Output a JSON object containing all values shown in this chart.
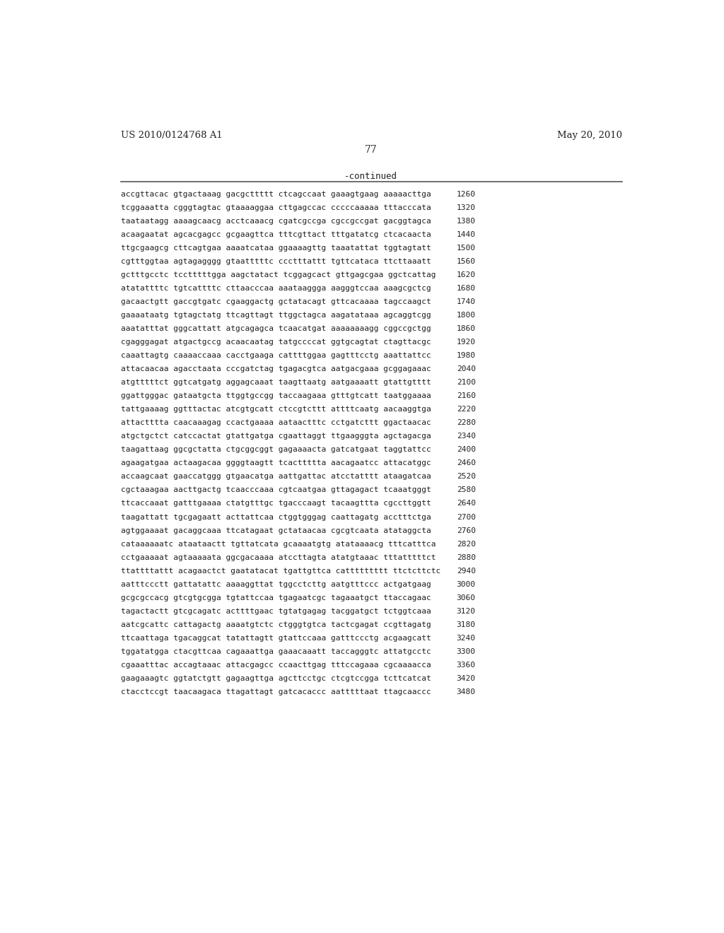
{
  "header_left": "US 2010/0124768 A1",
  "header_right": "May 20, 2010",
  "page_number": "77",
  "continued_text": "-continued",
  "background_color": "#ffffff",
  "text_color": "#231f20",
  "sequence_lines": [
    [
      "accgttacac gtgactaaag gacgcttttt ctcagccaat gaaagtgaag aaaaacttga",
      "1260"
    ],
    [
      "tcggaaatta cgggtagtac gtaaaaggaa cttgagccac cccccaaaaa tttacccata",
      "1320"
    ],
    [
      "taataatagg aaaagcaacg acctcaaacg cgatcgccga cgccgccgat gacggtagca",
      "1380"
    ],
    [
      "acaagaatat agcacgagcc gcgaagttca tttcgttact tttgatatcg ctcacaacta",
      "1440"
    ],
    [
      "ttgcgaagcg cttcagtgaa aaaatcataa ggaaaagttg taaatattat tggtagtatt",
      "1500"
    ],
    [
      "cgtttggtaa agtagagggg gtaatttttc ccctttattt tgttcataca ttcttaaatt",
      "1560"
    ],
    [
      "gctttgcctc tcctttttgga aagctatact tcggagcact gttgagcgaa ggctcattag",
      "1620"
    ],
    [
      "atatattttc tgtcattttc cttaacccaa aaataaggga aagggtccaa aaagcgctcg",
      "1680"
    ],
    [
      "gacaactgtt gaccgtgatc cgaaggactg gctatacagt gttcacaaaa tagccaagct",
      "1740"
    ],
    [
      "gaaaataatg tgtagctatg ttcagttagt ttggctagca aagatataaa agcaggtcgg",
      "1800"
    ],
    [
      "aaatatttat gggcattatt atgcagagca tcaacatgat aaaaaaaagg cggccgctgg",
      "1860"
    ],
    [
      "cgagggagat atgactgccg acaacaatag tatgccccat ggtgcagtat ctagttacgc",
      "1920"
    ],
    [
      "caaattagtg caaaaccaaa cacctgaaga cattttggaa gagtttcctg aaattattcc",
      "1980"
    ],
    [
      "attacaacaa agacctaata cccgatctag tgagacgtca aatgacgaaa gcggagaaac",
      "2040"
    ],
    [
      "atgtttttct ggtcatgatg aggagcaaat taagttaatg aatgaaaatt gtattgtttt",
      "2100"
    ],
    [
      "ggattgggac gataatgcta ttggtgccgg taccaagaaa gtttgtcatt taatggaaaa",
      "2160"
    ],
    [
      "tattgaaaag ggtttactac atcgtgcatt ctccgtcttt attttcaatg aacaaggtga",
      "2220"
    ],
    [
      "attactttta caacaaagag ccactgaaaa aataactttc cctgatcttt ggactaacac",
      "2280"
    ],
    [
      "atgctgctct catccactat gtattgatga cgaattaggt ttgaagggta agctagacga",
      "2340"
    ],
    [
      "taagattaag ggcgctatta ctgcggcggt gagaaaacta gatcatgaat taggtattcc",
      "2400"
    ],
    [
      "agaagatgaa actaagacaa ggggtaagtt tcacttttta aacagaatcc attacatggc",
      "2460"
    ],
    [
      "accaagcaat gaaccatggg gtgaacatga aattgattac atcctatttt ataagatcaa",
      "2520"
    ],
    [
      "cgctaaagaa aacttgactg tcaacccaaa cgtcaatgaa gttagagact tcaaatgggt",
      "2580"
    ],
    [
      "ttcaccaaat gatttgaaaa ctatgtttgc tgacccaagt tacaagttta cgccttggtt",
      "2640"
    ],
    [
      "taagattatt tgcgagaatt acttattcaa ctggtgggag caattagatg acctttctga",
      "2700"
    ],
    [
      "agtggaaaat gacaggcaaa ttcatagaat gctataacaa cgcgtcaata atataggcta",
      "2760"
    ],
    [
      "cataaaaaatc ataataactt tgttatcata gcaaaatgtg atataaaacg tttcatttca",
      "2820"
    ],
    [
      "cctgaaaaat agtaaaaata ggcgacaaaa atccttagta atatgtaaac tttatttttct",
      "2880"
    ],
    [
      "ttattttattt acagaactct gaatatacat tgattgttca cattttttttt ttctcttctc",
      "2940"
    ],
    [
      "aatttccctt gattatattc aaaaggttat tggcctcttg aatgtttccc actgatgaag",
      "3000"
    ],
    [
      "gcgcgccacg gtcgtgcgga tgtattccaa tgagaatcgc tagaaatgct ttaccagaac",
      "3060"
    ],
    [
      "tagactactt gtcgcagatc acttttgaac tgtatgagag tacggatgct tctggtcaaa",
      "3120"
    ],
    [
      "aatcgcattc cattagactg aaaatgtctc ctgggtgtca tactcgagat ccgttagatg",
      "3180"
    ],
    [
      "ttcaattaga tgacaggcat tatattagtt gtattccaaa gatttccctg acgaagcatt",
      "3240"
    ],
    [
      "tggatatgga ctacgttcaa cagaaattga gaaacaaatt taccagggtc attatgcctc",
      "3300"
    ],
    [
      "cgaaatttac accagtaaac attacgagcc ccaacttgag tttccagaaa cgcaaaacca",
      "3360"
    ],
    [
      "gaagaaagtc ggtatctgtt gagaagttga agcttcctgc ctcgtccgga tcttcatcat",
      "3420"
    ],
    [
      "ctacctccgt taacaagaca ttagattagt gatcacaccc aatttttaat ttagcaaccc",
      "3480"
    ]
  ]
}
